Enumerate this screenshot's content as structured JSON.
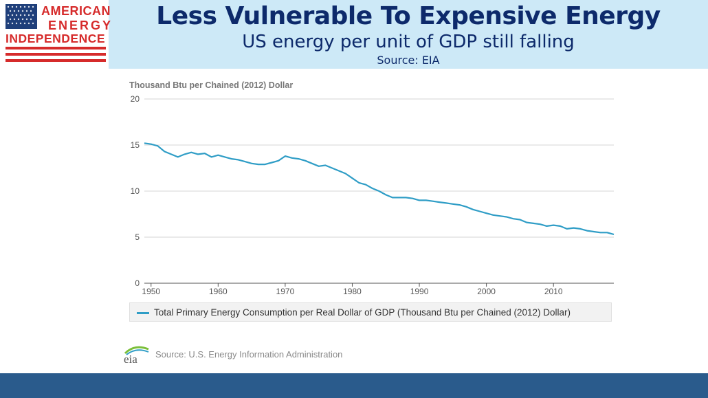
{
  "logo": {
    "line1": "AMERICAN",
    "line2": "ENERGY",
    "line3": "INDEPENDENCE",
    "colors": {
      "red": "#d62b2b",
      "blue": "#1f3f7a"
    }
  },
  "header": {
    "title": "Less Vulnerable To Expensive Energy",
    "subtitle": "US energy per unit of GDP still falling",
    "source": "Source: EIA"
  },
  "chart_data": {
    "type": "line",
    "title": "",
    "ylabel": "Thousand Btu per Chained (2012) Dollar",
    "xlabel": "",
    "ylim": [
      0,
      20
    ],
    "xlim": [
      1949,
      2019
    ],
    "yticks": [
      0,
      5,
      10,
      15,
      20
    ],
    "xticks": [
      1950,
      1960,
      1970,
      1980,
      1990,
      2000,
      2010
    ],
    "grid": true,
    "legend_position": "bottom",
    "series": [
      {
        "name": "Total Primary Energy Consumption per Real Dollar of GDP (Thousand Btu per Chained (2012) Dollar)",
        "color": "#2f9dc6",
        "x": [
          1949,
          1950,
          1951,
          1952,
          1953,
          1954,
          1955,
          1956,
          1957,
          1958,
          1959,
          1960,
          1961,
          1962,
          1963,
          1964,
          1965,
          1966,
          1967,
          1968,
          1969,
          1970,
          1971,
          1972,
          1973,
          1974,
          1975,
          1976,
          1977,
          1978,
          1979,
          1980,
          1981,
          1982,
          1983,
          1984,
          1985,
          1986,
          1987,
          1988,
          1989,
          1990,
          1991,
          1992,
          1993,
          1994,
          1995,
          1996,
          1997,
          1998,
          1999,
          2000,
          2001,
          2002,
          2003,
          2004,
          2005,
          2006,
          2007,
          2008,
          2009,
          2010,
          2011,
          2012,
          2013,
          2014,
          2015,
          2016,
          2017,
          2018,
          2019
        ],
        "values": [
          15.2,
          15.1,
          14.9,
          14.3,
          14.0,
          13.7,
          14.0,
          14.2,
          14.0,
          14.1,
          13.7,
          13.9,
          13.7,
          13.5,
          13.4,
          13.2,
          13.0,
          12.9,
          12.9,
          13.1,
          13.3,
          13.8,
          13.6,
          13.5,
          13.3,
          13.0,
          12.7,
          12.8,
          12.5,
          12.2,
          11.9,
          11.4,
          10.9,
          10.7,
          10.3,
          10.0,
          9.6,
          9.3,
          9.3,
          9.3,
          9.2,
          9.0,
          9.0,
          8.9,
          8.8,
          8.7,
          8.6,
          8.5,
          8.3,
          8.0,
          7.8,
          7.6,
          7.4,
          7.3,
          7.2,
          7.0,
          6.9,
          6.6,
          6.5,
          6.4,
          6.2,
          6.3,
          6.2,
          5.9,
          6.0,
          5.9,
          5.7,
          5.6,
          5.5,
          5.5,
          5.3
        ]
      }
    ]
  },
  "footer": {
    "source": "Source: U.S. Energy Information Administration",
    "logo_text": "eia"
  }
}
